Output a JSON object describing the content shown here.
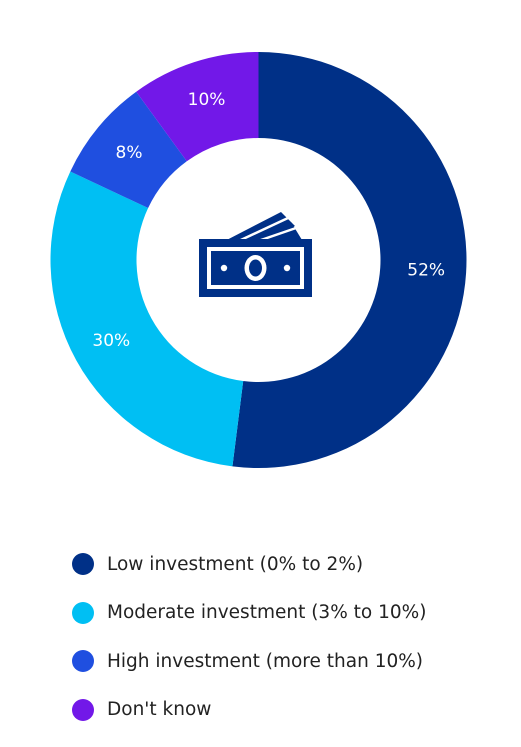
{
  "chart_data": {
    "type": "pie",
    "subtype": "donut",
    "categories": [
      "Low investment (0% to 2%)",
      "Moderate investment (3% to 10%)",
      "High investment (more than 10%)",
      "Don't know"
    ],
    "values": [
      52,
      30,
      8,
      10
    ],
    "data_labels": [
      "52%",
      "30%",
      "8%",
      "10%"
    ],
    "colors": [
      "#003087",
      "#00BFF3",
      "#1F4FE0",
      "#7218E8"
    ],
    "center_icon": "money-bills-icon",
    "legend_position": "bottom"
  },
  "legend": {
    "items": [
      {
        "label": "Low investment (0% to 2%)",
        "color": "#003087"
      },
      {
        "label": "Moderate investment (3% to 10%)",
        "color": "#00BFF3"
      },
      {
        "label": "High investment (more than 10%)",
        "color": "#1F4FE0"
      },
      {
        "label": "Don't know",
        "color": "#7218E8"
      }
    ]
  }
}
